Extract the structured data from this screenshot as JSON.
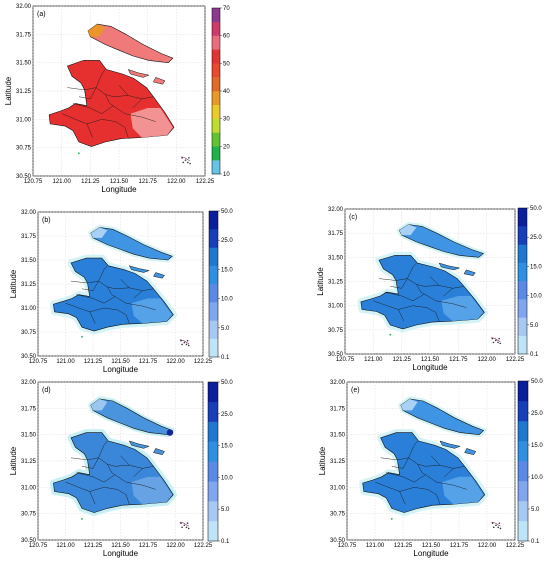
{
  "figure": {
    "panels": [
      {
        "label": "(a)",
        "xlabel": "Longitude",
        "ylabel": "Latitude",
        "xticks": [
          "120.75",
          "121.00",
          "121.25",
          "121.50",
          "121.75",
          "122.00",
          "122.25"
        ],
        "yticks": [
          "30.50",
          "30.75",
          "31.00",
          "31.25",
          "31.50",
          "31.75",
          "32.00"
        ],
        "colorbar": {
          "ticks": [
            "10",
            "20",
            "30",
            "40",
            "50",
            "60",
            "70"
          ],
          "colors": [
            "#68c4e6",
            "#1fb24b",
            "#63c431",
            "#bfdd2d",
            "#ecca27",
            "#e89a26",
            "#e06a27",
            "#e8492f",
            "#e23335",
            "#ea6c7d",
            "#cf3a6a",
            "#8e3a8e"
          ]
        },
        "theme": "warm"
      },
      {
        "label": "(b)",
        "xlabel": "Longitude",
        "ylabel": "Latitude",
        "xticks": [
          "120.75",
          "121.00",
          "121.25",
          "121.50",
          "121.75",
          "122.00",
          "122.25"
        ],
        "yticks": [
          "30.50",
          "30.75",
          "31.00",
          "31.25",
          "31.50",
          "31.75",
          "32.00"
        ],
        "colorbar": {
          "ticks": [
            "0.1",
            "5.0",
            "10.0",
            "15.0",
            "25.0",
            "50.0"
          ],
          "colors": [
            "#bfe3f7",
            "#a7c8f2",
            "#7fa6ee",
            "#5b8ae6",
            "#2f8fe0",
            "#1d78cf",
            "#163fb9",
            "#0b1e9c"
          ]
        },
        "theme": "blue"
      },
      {
        "label": "(c)",
        "xlabel": "Longitude",
        "ylabel": "Latitude",
        "xticks": [
          "120.75",
          "121.00",
          "121.25",
          "121.50",
          "121.75",
          "122.00",
          "122.25"
        ],
        "yticks": [
          "30.50",
          "30.75",
          "31.00",
          "31.25",
          "31.50",
          "31.75",
          "32.00"
        ],
        "colorbar": {
          "ticks": [
            "0.1",
            "5.0",
            "10.0",
            "15.0",
            "25.0",
            "50.0"
          ],
          "colors": [
            "#bfe3f7",
            "#a7c8f2",
            "#7fa6ee",
            "#5b8ae6",
            "#2f8fe0",
            "#1d78cf",
            "#163fb9",
            "#0b1e9c"
          ]
        },
        "theme": "blue"
      },
      {
        "label": "(d)",
        "xlabel": "Longitude",
        "ylabel": "Latitude",
        "xticks": [
          "120.75",
          "121.00",
          "121.25",
          "121.50",
          "121.75",
          "122.00",
          "122.25"
        ],
        "yticks": [
          "30.50",
          "30.75",
          "31.00",
          "31.25",
          "31.50",
          "31.75",
          "32.00"
        ],
        "colorbar": {
          "ticks": [
            "0.1",
            "5.0",
            "10.0",
            "15.0",
            "25.0",
            "50.0"
          ],
          "colors": [
            "#bfe3f7",
            "#a7c8f2",
            "#7fa6ee",
            "#5b8ae6",
            "#2f8fe0",
            "#1d78cf",
            "#163fb9",
            "#0b1e9c"
          ]
        },
        "theme": "blue2"
      },
      {
        "label": "(e)",
        "xlabel": "Longitude",
        "ylabel": "Latitude",
        "xticks": [
          "120.75",
          "121.00",
          "121.25",
          "121.50",
          "121.75",
          "122.00",
          "122.25"
        ],
        "yticks": [
          "30.50",
          "30.75",
          "31.00",
          "31.25",
          "31.50",
          "31.75",
          "32.00"
        ],
        "colorbar": {
          "ticks": [
            "0.1",
            "5.0",
            "10.0",
            "15.0",
            "25.0",
            "50.0"
          ],
          "colors": [
            "#bfe3f7",
            "#a7c8f2",
            "#7fa6ee",
            "#5b8ae6",
            "#2f8fe0",
            "#1d78cf",
            "#163fb9",
            "#0b1e9c"
          ]
        },
        "theme": "blue"
      }
    ]
  }
}
